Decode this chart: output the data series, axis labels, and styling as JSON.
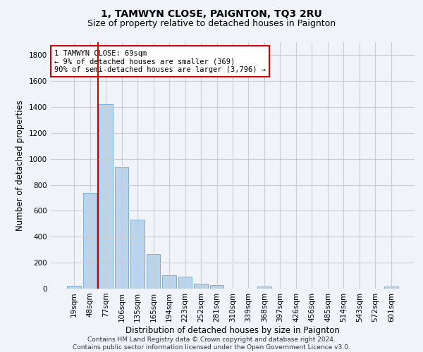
{
  "title": "1, TAMWYN CLOSE, PAIGNTON, TQ3 2RU",
  "subtitle": "Size of property relative to detached houses in Paignton",
  "xlabel": "Distribution of detached houses by size in Paignton",
  "ylabel": "Number of detached properties",
  "categories": [
    "19sqm",
    "48sqm",
    "77sqm",
    "106sqm",
    "135sqm",
    "165sqm",
    "194sqm",
    "223sqm",
    "252sqm",
    "281sqm",
    "310sqm",
    "339sqm",
    "368sqm",
    "397sqm",
    "426sqm",
    "456sqm",
    "485sqm",
    "514sqm",
    "543sqm",
    "572sqm",
    "601sqm"
  ],
  "values": [
    22,
    740,
    1420,
    940,
    530,
    265,
    105,
    92,
    40,
    28,
    0,
    0,
    18,
    0,
    0,
    0,
    0,
    0,
    0,
    0,
    18
  ],
  "bar_color": "#bad4ed",
  "bar_edge_color": "#7aafd4",
  "vline_color": "#cc0000",
  "annotation_text": "1 TAMWYN CLOSE: 69sqm\n← 9% of detached houses are smaller (369)\n90% of semi-detached houses are larger (3,796) →",
  "annotation_box_color": "#ffffff",
  "annotation_box_edge": "#cc0000",
  "ylim": [
    0,
    1900
  ],
  "yticks": [
    0,
    200,
    400,
    600,
    800,
    1000,
    1200,
    1400,
    1600,
    1800
  ],
  "grid_color": "#cccccc",
  "background_color": "#f0f4fa",
  "footer": "Contains HM Land Registry data © Crown copyright and database right 2024.\nContains public sector information licensed under the Open Government Licence v3.0.",
  "title_fontsize": 10,
  "subtitle_fontsize": 9,
  "xlabel_fontsize": 8.5,
  "ylabel_fontsize": 8.5,
  "tick_fontsize": 7.5,
  "annotation_fontsize": 7.5,
  "footer_fontsize": 6.5
}
